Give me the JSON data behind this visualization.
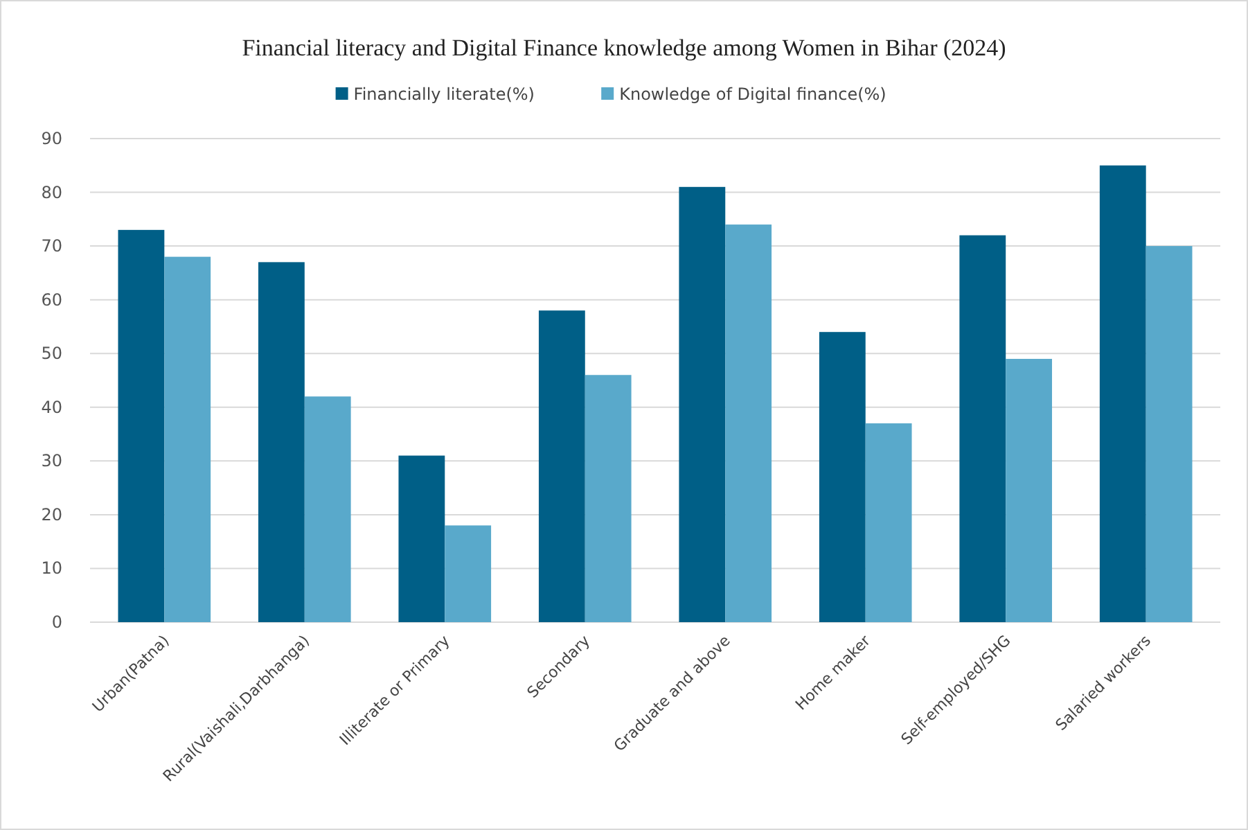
{
  "chart_data": {
    "type": "bar",
    "title": "Financial literacy and Digital Finance knowledge among Women in Bihar (2024)",
    "categories": [
      "Urban(Patna)",
      "Rural(Vaishali,Darbhanga)",
      "Illiterate or Primary",
      "Secondary",
      "Graduate and above",
      "Home maker",
      "Self-employed/SHG",
      "Salaried workers"
    ],
    "series": [
      {
        "name": "Financially literate(%)",
        "color": "#005f87",
        "values": [
          73,
          67,
          31,
          58,
          81,
          54,
          72,
          85
        ]
      },
      {
        "name": "Knowledge of Digital finance(%)",
        "color": "#59a9cb",
        "values": [
          68,
          42,
          18,
          46,
          74,
          37,
          49,
          70
        ]
      }
    ],
    "ylim": [
      0,
      90
    ],
    "yticks": [
      0,
      10,
      20,
      30,
      40,
      50,
      60,
      70,
      80,
      90
    ],
    "grid": "y",
    "legend": "top"
  }
}
